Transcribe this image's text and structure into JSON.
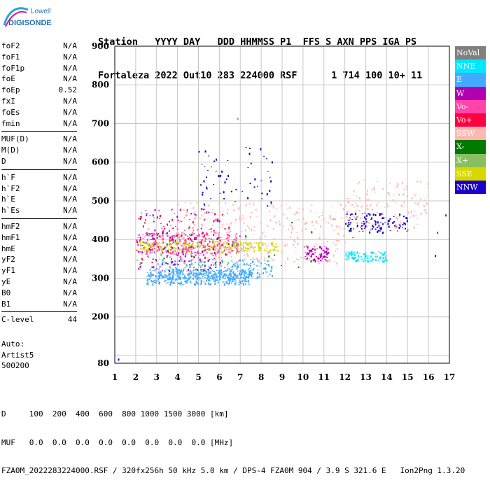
{
  "logo": {
    "line1": "Lowell",
    "line2": "DIGISONDE"
  },
  "header": {
    "row1": "Station   YYYY DAY   DDD HHMMSS P1  FFS S AXN PPS IGA PS",
    "row2": "Fortaleza 2022 Out10 283 224000 RSF      1 714 100 10+ 11"
  },
  "params_groups": [
    [
      [
        "foF2",
        "N/A"
      ],
      [
        "foF1",
        "N/A"
      ],
      [
        "foF1p",
        "N/A"
      ],
      [
        "foE",
        "N/A"
      ],
      [
        "foEp",
        "0.52"
      ],
      [
        "fxI",
        "N/A"
      ],
      [
        "foEs",
        "N/A"
      ],
      [
        "fmin",
        "N/A"
      ]
    ],
    [
      [
        "MUF(D)",
        "N/A"
      ],
      [
        "M(D)",
        "N/A"
      ],
      [
        "D",
        "N/A"
      ]
    ],
    [
      [
        "h`F",
        "N/A"
      ],
      [
        "h`F2",
        "N/A"
      ],
      [
        "h`E",
        "N/A"
      ],
      [
        "h`Es",
        "N/A"
      ]
    ],
    [
      [
        "hmF2",
        "N/A"
      ],
      [
        "hmF1",
        "N/A"
      ],
      [
        "hmE",
        "N/A"
      ],
      [
        "yF2",
        "N/A"
      ],
      [
        "yF1",
        "N/A"
      ],
      [
        "yE",
        "N/A"
      ],
      [
        "B0",
        "N/A"
      ],
      [
        "B1",
        "N/A"
      ]
    ],
    [
      [
        "C-level",
        "44"
      ]
    ]
  ],
  "auto": {
    "line1": "Auto:",
    "line2": "Artist5",
    "line3": "500200"
  },
  "legend": [
    {
      "label": "NoVal",
      "color": "#808080"
    },
    {
      "label": "NNE",
      "color": "#00e8ff"
    },
    {
      "label": "E",
      "color": "#44aaff"
    },
    {
      "label": "W",
      "color": "#b000b0"
    },
    {
      "label": "Vo-",
      "color": "#ff44aa"
    },
    {
      "label": "Vo+",
      "color": "#ff0040"
    },
    {
      "label": "SSW",
      "color": "#ffb8b0"
    },
    {
      "label": "X-",
      "color": "#007a00"
    },
    {
      "label": "X+",
      "color": "#88c060"
    },
    {
      "label": "SSE",
      "color": "#d8d800"
    },
    {
      "label": "NNW",
      "color": "#1c00c8"
    }
  ],
  "chart_data": {
    "type": "scatter",
    "xlabel": "",
    "ylabel": "",
    "xlim": [
      1,
      17
    ],
    "ylim": [
      80,
      900
    ],
    "xticks": [
      1,
      2,
      3,
      4,
      5,
      6,
      7,
      8,
      9,
      10,
      11,
      12,
      13,
      14,
      15,
      16,
      17
    ],
    "yticks": [
      80,
      200,
      300,
      400,
      500,
      600,
      700,
      800,
      900
    ],
    "grid": true,
    "clusters": [
      {
        "name": "E",
        "color": "#44aaff",
        "x": [
          2.5,
          7.5
        ],
        "y": [
          285,
          325
        ],
        "n": 420
      },
      {
        "name": "E",
        "color": "#44aaff",
        "x": [
          3.0,
          8.5
        ],
        "y": [
          300,
          350
        ],
        "n": 220
      },
      {
        "name": "SSE",
        "color": "#d8d800",
        "x": [
          2.0,
          8.8
        ],
        "y": [
          370,
          395
        ],
        "n": 260
      },
      {
        "name": "Vo-",
        "color": "#ff44aa",
        "x": [
          2.0,
          7.0
        ],
        "y": [
          360,
          420
        ],
        "n": 240
      },
      {
        "name": "W",
        "color": "#b000b0",
        "x": [
          2.0,
          6.0
        ],
        "y": [
          320,
          480
        ],
        "n": 180
      },
      {
        "name": "SSW",
        "color": "#ffb8b0",
        "x": [
          4.0,
          12.0
        ],
        "y": [
          340,
          500
        ],
        "n": 320
      },
      {
        "name": "SSW",
        "color": "#ffb8b0",
        "x": [
          12.0,
          16.0
        ],
        "y": [
          430,
          560
        ],
        "n": 120
      },
      {
        "name": "NNW",
        "color": "#1c00c8",
        "x": [
          5.0,
          8.5
        ],
        "y": [
          480,
          640
        ],
        "n": 60
      },
      {
        "name": "NNW",
        "color": "#1c00c8",
        "x": [
          12.0,
          15.0
        ],
        "y": [
          420,
          470
        ],
        "n": 110
      },
      {
        "name": "NNE",
        "color": "#00e8ff",
        "x": [
          12.0,
          14.0
        ],
        "y": [
          345,
          370
        ],
        "n": 90
      },
      {
        "name": "W",
        "color": "#b000b0",
        "x": [
          10.0,
          11.2
        ],
        "y": [
          345,
          385
        ],
        "n": 80
      },
      {
        "name": "Vo+",
        "color": "#ff0040",
        "x": [
          2.0,
          6.5
        ],
        "y": [
          340,
          470
        ],
        "n": 60
      },
      {
        "name": "X-",
        "color": "#007a00",
        "x": [
          2.5,
          13.0
        ],
        "y": [
          330,
          500
        ],
        "n": 30
      },
      {
        "name": "X+",
        "color": "#88c060",
        "x": [
          2.0,
          7.0
        ],
        "y": [
          320,
          420
        ],
        "n": 40
      }
    ],
    "outliers": [
      [
        1.15,
        92,
        "#1c00c8"
      ],
      [
        6.85,
        715,
        "#44aaff"
      ],
      [
        16.8,
        465,
        "#007a00"
      ],
      [
        16.4,
        420,
        "#ff0040"
      ],
      [
        16.3,
        360,
        "#1c00c8"
      ]
    ]
  },
  "footer": {
    "row1": "D     100  200  400  600  800 1000 1500 3000 [km]",
    "row2": "MUF   0.0  0.0  0.0  0.0  0.0  0.0  0.0  0.0 [MHz]",
    "row3": "FZA0M_2022283224000.RSF / 320fx256h 50 kHz 5.0 km / DPS-4 FZA0M 904 / 3.9 S 321.6 E   Ion2Png 1.3.20"
  }
}
